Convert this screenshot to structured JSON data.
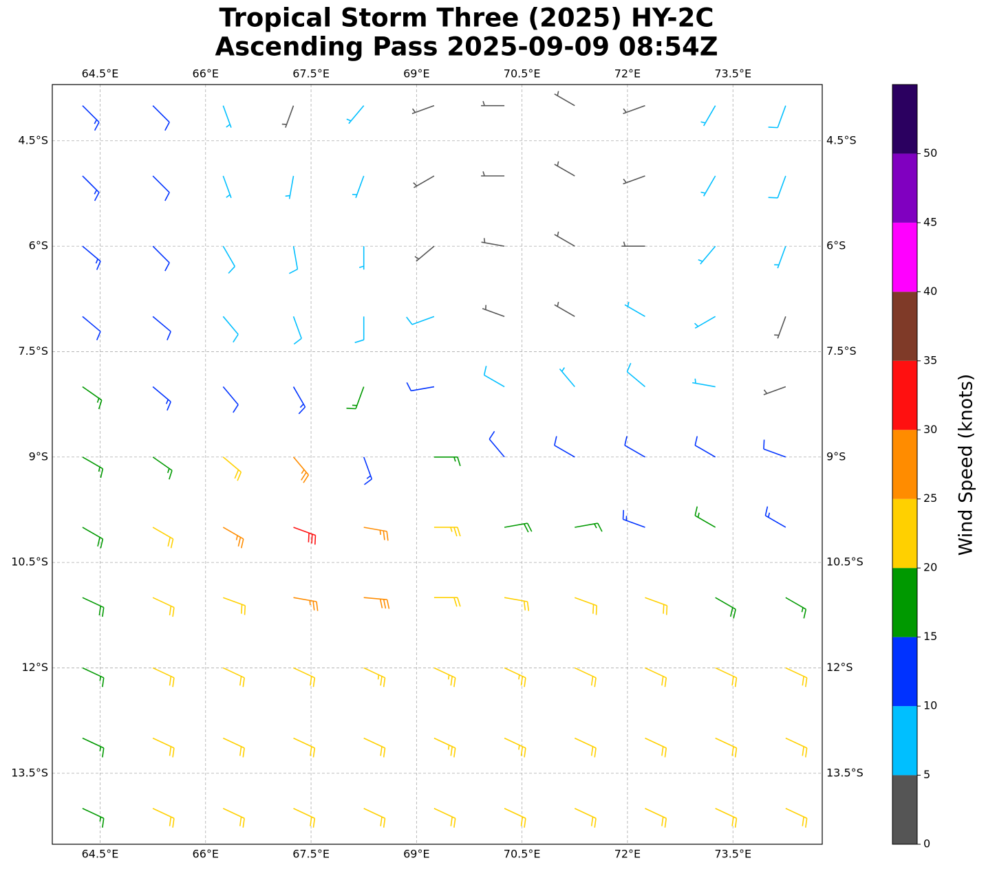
{
  "chart_data": {
    "type": "barbs",
    "title": "Tropical Storm Three (2025) HY-2C",
    "subtitle": "Ascending Pass 2025-09-09 08:54Z",
    "xlim": [
      63.82,
      74.77
    ],
    "ylim": [
      -14.51,
      -3.7
    ],
    "xticks": [
      {
        "value": 64.5,
        "label": "64.5°E"
      },
      {
        "value": 66,
        "label": "66°E"
      },
      {
        "value": 67.5,
        "label": "67.5°E"
      },
      {
        "value": 69,
        "label": "69°E"
      },
      {
        "value": 70.5,
        "label": "70.5°E"
      },
      {
        "value": 72,
        "label": "72°E"
      },
      {
        "value": 73.5,
        "label": "73.5°E"
      }
    ],
    "yticks": [
      {
        "value": -4.5,
        "label": "4.5°S"
      },
      {
        "value": -6,
        "label": "6°S"
      },
      {
        "value": -7.5,
        "label": "7.5°S"
      },
      {
        "value": -9,
        "label": "9°S"
      },
      {
        "value": -10.5,
        "label": "10.5°S"
      },
      {
        "value": -12,
        "label": "12°S"
      },
      {
        "value": -13.5,
        "label": "13.5°S"
      }
    ],
    "grid": true,
    "wind": {
      "lon": [
        64.25,
        65.25,
        66.25,
        67.25,
        68.25,
        69.25,
        70.25,
        71.25,
        72.25,
        73.25,
        74.25
      ],
      "lat": [
        -4,
        -5,
        -6,
        -7,
        -8,
        -9,
        -10,
        -11,
        -12,
        -13,
        -14
      ],
      "speed": [
        [
          14,
          12,
          7,
          4,
          6,
          4,
          3,
          3,
          4,
          7,
          8
        ],
        [
          13,
          11,
          7,
          6,
          7,
          4,
          3,
          3,
          4,
          5,
          8
        ],
        [
          13,
          11,
          8,
          8,
          7,
          4,
          4,
          3,
          4,
          5,
          7
        ],
        [
          12,
          11,
          9,
          9,
          8,
          8,
          4,
          3,
          6,
          5,
          4
        ],
        [
          15,
          13,
          11,
          14,
          16,
          12,
          8,
          7,
          8,
          6,
          4
        ],
        [
          17,
          16,
          22,
          25,
          14,
          17,
          12,
          11,
          12,
          11,
          10
        ],
        [
          18,
          20,
          27,
          30,
          27,
          23,
          18,
          16,
          14,
          16,
          13
        ],
        [
          18,
          20,
          22,
          26,
          28,
          22,
          21,
          20,
          20,
          18,
          17
        ],
        [
          17,
          22,
          22,
          22,
          23,
          23,
          23,
          22,
          22,
          22,
          21
        ],
        [
          17,
          21,
          22,
          22,
          22,
          23,
          23,
          22,
          22,
          22,
          21
        ],
        [
          17,
          21,
          22,
          22,
          22,
          22,
          22,
          22,
          22,
          22,
          22
        ]
      ],
      "direction": [
        [
          135,
          135,
          160,
          200,
          220,
          250,
          270,
          300,
          250,
          210,
          200
        ],
        [
          135,
          135,
          160,
          190,
          200,
          240,
          270,
          300,
          250,
          210,
          200
        ],
        [
          130,
          135,
          150,
          170,
          180,
          230,
          280,
          300,
          270,
          220,
          200
        ],
        [
          130,
          130,
          140,
          160,
          180,
          250,
          290,
          300,
          300,
          240,
          200
        ],
        [
          125,
          130,
          140,
          150,
          200,
          260,
          300,
          320,
          310,
          280,
          250
        ],
        [
          120,
          125,
          130,
          140,
          160,
          90,
          320,
          300,
          300,
          300,
          290
        ],
        [
          120,
          120,
          120,
          110,
          100,
          90,
          80,
          80,
          290,
          300,
          300
        ],
        [
          115,
          115,
          110,
          100,
          95,
          90,
          100,
          110,
          110,
          120,
          120
        ],
        [
          115,
          115,
          115,
          115,
          115,
          115,
          115,
          115,
          115,
          115,
          115
        ],
        [
          115,
          115,
          115,
          115,
          115,
          115,
          115,
          115,
          115,
          115,
          115
        ],
        [
          115,
          115,
          115,
          115,
          115,
          115,
          115,
          115,
          115,
          115,
          115
        ]
      ]
    },
    "colorbar": {
      "label": "Wind Speed (knots)",
      "lim": [
        0,
        55
      ],
      "bounds": [
        0,
        5,
        10,
        15,
        20,
        25,
        30,
        35,
        40,
        45,
        50,
        55
      ],
      "colors": [
        "#555555",
        "#00bfff",
        "#0032ff",
        "#009900",
        "#ffd000",
        "#ff8c00",
        "#ff1010",
        "#7f3a28",
        "#ff00ff",
        "#8000c0",
        "#2b0060"
      ],
      "ticks": [
        0,
        5,
        10,
        15,
        20,
        25,
        30,
        35,
        40,
        45,
        50
      ]
    }
  }
}
